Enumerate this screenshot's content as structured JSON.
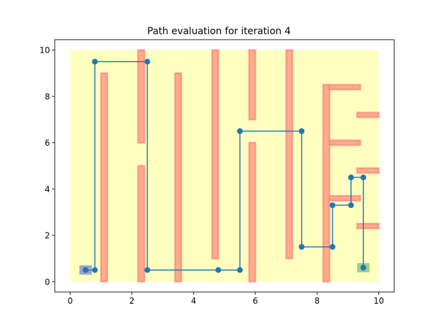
{
  "chart_data": {
    "type": "line",
    "title": "Path evaluation for iteration 4",
    "xlabel": "",
    "ylabel": "",
    "xlim": [
      -0.5,
      10.5
    ],
    "ylim": [
      -0.45,
      10.45
    ],
    "x_ticks": [
      0,
      2,
      4,
      6,
      8,
      10
    ],
    "y_ticks": [
      0,
      2,
      4,
      6,
      8,
      10
    ],
    "grid": false,
    "colors": {
      "workspace": "#ffffc0",
      "obstacle_fill": "#ff9f80",
      "obstacle_edge": "#ff8080",
      "start": "#9aa8c4",
      "goal": "#9fcf8a",
      "path": "#1f77b4"
    },
    "workspace": {
      "x": [
        0,
        10
      ],
      "y": [
        0,
        10
      ]
    },
    "start_region": {
      "x": [
        0.3,
        0.7
      ],
      "y": [
        0.3,
        0.7
      ]
    },
    "goal_region": {
      "x": [
        9.3,
        9.7
      ],
      "y": [
        0.4,
        0.8
      ]
    },
    "obstacles": [
      {
        "x": [
          1.0,
          1.2
        ],
        "y": [
          0.0,
          9.0
        ]
      },
      {
        "x": [
          2.2,
          2.4
        ],
        "y": [
          0.0,
          5.0
        ]
      },
      {
        "x": [
          2.2,
          2.4
        ],
        "y": [
          6.0,
          10.0
        ]
      },
      {
        "x": [
          3.4,
          3.6
        ],
        "y": [
          0.0,
          9.0
        ]
      },
      {
        "x": [
          4.6,
          4.8
        ],
        "y": [
          1.0,
          10.0
        ]
      },
      {
        "x": [
          5.8,
          6.0
        ],
        "y": [
          0.0,
          6.0
        ]
      },
      {
        "x": [
          5.8,
          6.0
        ],
        "y": [
          7.0,
          10.0
        ]
      },
      {
        "x": [
          7.0,
          7.2
        ],
        "y": [
          1.0,
          10.0
        ]
      },
      {
        "x": [
          8.2,
          8.4
        ],
        "y": [
          0.0,
          8.5
        ]
      },
      {
        "x": [
          8.4,
          9.4
        ],
        "y": [
          8.3,
          8.5
        ]
      },
      {
        "x": [
          9.3,
          10.0
        ],
        "y": [
          7.1,
          7.3
        ]
      },
      {
        "x": [
          8.4,
          9.4
        ],
        "y": [
          5.9,
          6.1
        ]
      },
      {
        "x": [
          9.3,
          10.0
        ],
        "y": [
          4.7,
          4.9
        ]
      },
      {
        "x": [
          8.4,
          9.4
        ],
        "y": [
          3.5,
          3.7
        ]
      },
      {
        "x": [
          9.3,
          10.0
        ],
        "y": [
          2.3,
          2.5
        ]
      }
    ],
    "series": [
      {
        "x": [
          0.5,
          0.8,
          0.8,
          2.5,
          2.5,
          4.8,
          5.5,
          5.5,
          7.5,
          7.5,
          8.5,
          8.5,
          9.1,
          9.1,
          9.5,
          9.5
        ],
        "y": [
          0.5,
          0.5,
          9.5,
          9.5,
          0.5,
          0.5,
          0.5,
          6.5,
          6.5,
          1.5,
          1.5,
          3.3,
          3.3,
          4.5,
          4.5,
          0.6
        ]
      }
    ]
  }
}
